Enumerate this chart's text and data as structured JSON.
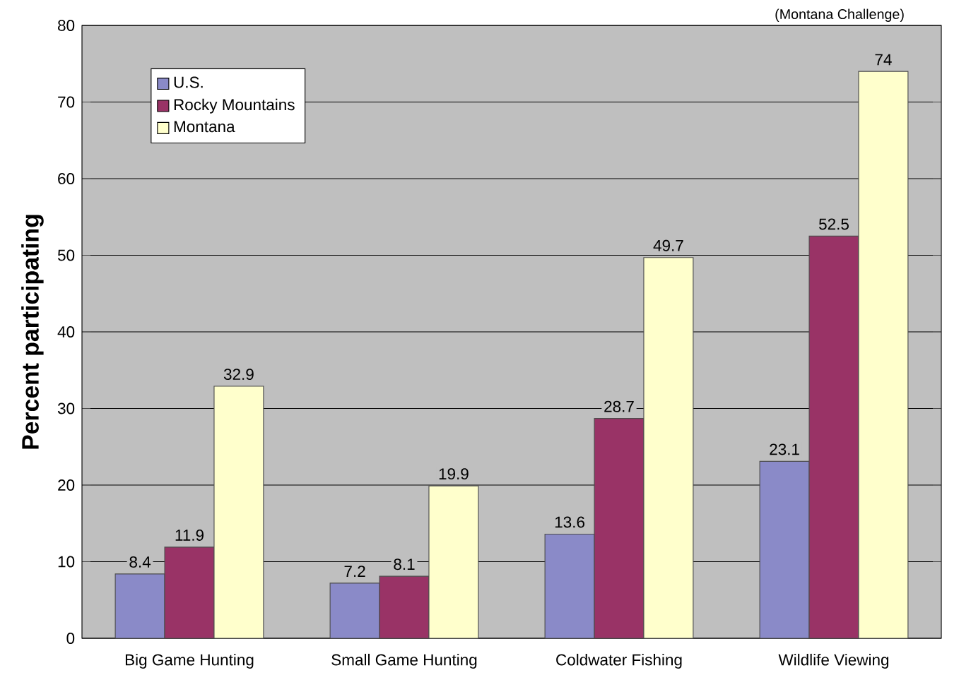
{
  "chart_data": {
    "type": "bar",
    "ylabel": "Percent participating",
    "annotations": [
      "(Montana Challenge)"
    ],
    "categories": [
      "Big Game Hunting",
      "Small Game Hunting",
      "Coldwater Fishing",
      "Wildlife Viewing"
    ],
    "series": [
      {
        "name": "U.S.",
        "color": "#8a8ac8",
        "values": [
          8.4,
          7.2,
          13.6,
          23.1
        ]
      },
      {
        "name": "Rocky Mountains",
        "color": "#993366",
        "values": [
          11.9,
          8.1,
          28.7,
          52.5
        ]
      },
      {
        "name": "Montana",
        "color": "#ffffcc",
        "values": [
          32.9,
          19.9,
          49.7,
          74
        ]
      }
    ],
    "ylim": [
      0,
      80
    ],
    "yticks": [
      0,
      10,
      20,
      30,
      40,
      50,
      60,
      70,
      80
    ],
    "grid": "y",
    "legend": "top left",
    "data_labels": true
  }
}
